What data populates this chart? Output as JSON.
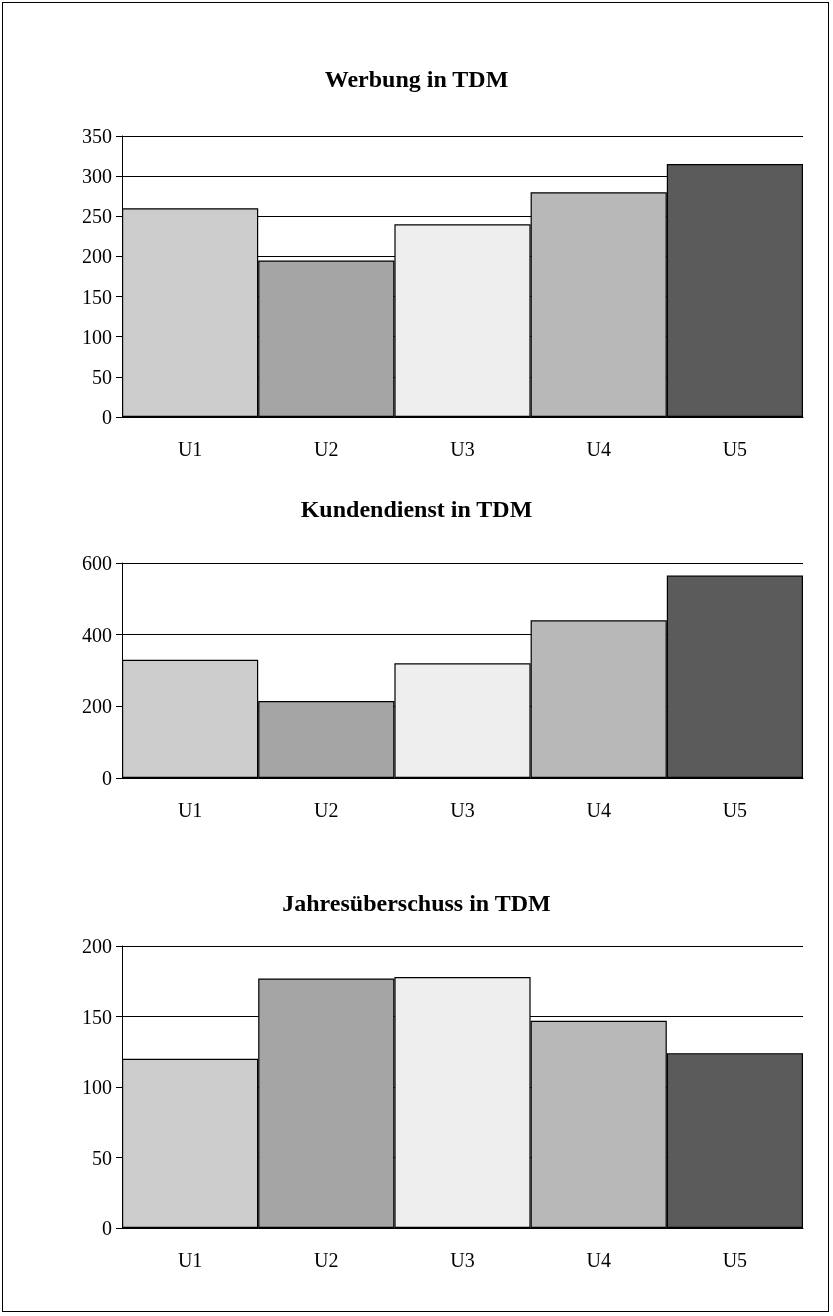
{
  "chart_data": [
    {
      "type": "bar",
      "title": "Werbung in TDM",
      "categories": [
        "U1",
        "U2",
        "U3",
        "U4",
        "U5"
      ],
      "values": [
        260,
        195,
        240,
        280,
        315
      ],
      "colors": [
        "#cccccc",
        "#a5a5a5",
        "#eeeeee",
        "#b8b8b8",
        "#5b5b5b"
      ],
      "ylim": [
        0,
        350
      ],
      "yticks": [
        0,
        50,
        100,
        150,
        200,
        250,
        300,
        350
      ],
      "grid": "y"
    },
    {
      "type": "bar",
      "title": "Kundendienst in TDM",
      "categories": [
        "U1",
        "U2",
        "U3",
        "U4",
        "U5"
      ],
      "values": [
        330,
        215,
        320,
        440,
        565
      ],
      "colors": [
        "#cccccc",
        "#a5a5a5",
        "#eeeeee",
        "#b8b8b8",
        "#5b5b5b"
      ],
      "ylim": [
        0,
        600
      ],
      "yticks": [
        0,
        200,
        400,
        600
      ],
      "grid": "y"
    },
    {
      "type": "bar",
      "title": "Jahresüberschuss in TDM",
      "categories": [
        "U1",
        "U2",
        "U3",
        "U4",
        "U5"
      ],
      "values": [
        120,
        177,
        178,
        147,
        124
      ],
      "colors": [
        "#cccccc",
        "#a5a5a5",
        "#eeeeee",
        "#b8b8b8",
        "#5b5b5b"
      ],
      "ylim": [
        0,
        200
      ],
      "yticks": [
        0,
        50,
        100,
        150,
        200
      ],
      "grid": "y"
    }
  ]
}
